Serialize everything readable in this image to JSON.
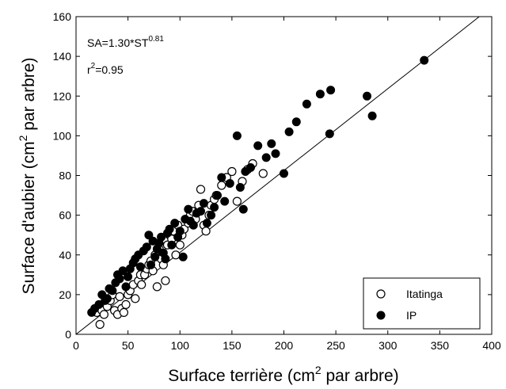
{
  "chart_data": {
    "type": "scatter",
    "xlabel": {
      "pre": "Surface terrière (cm",
      "sup": "2",
      "post": " par arbre)"
    },
    "ylabel": {
      "pre": "Surface d'aubier (cm",
      "sup": "2",
      "post": " par arbre)"
    },
    "xlim": [
      0,
      400
    ],
    "ylim": [
      0,
      160
    ],
    "x_ticks": [
      0,
      50,
      100,
      150,
      200,
      250,
      300,
      350,
      400
    ],
    "y_ticks": [
      0,
      20,
      40,
      60,
      80,
      100,
      120,
      140,
      160
    ],
    "grid": false,
    "legend_position": "bottom-right",
    "annotation": {
      "equation": {
        "pre": "SA=1.30*ST",
        "sup": "0.81"
      },
      "r2": {
        "pre": "r",
        "sup": "2",
        "post": "=0.95"
      }
    },
    "fit": {
      "type": "line",
      "points": [
        [
          0,
          0
        ],
        [
          388,
          160
        ]
      ]
    },
    "series": [
      {
        "name": "Itatinga",
        "marker": "open-circle",
        "color": "#000000",
        "points": [
          [
            20,
            11
          ],
          [
            23,
            5
          ],
          [
            25,
            12
          ],
          [
            27,
            10
          ],
          [
            30,
            14
          ],
          [
            33,
            17
          ],
          [
            35,
            20
          ],
          [
            37,
            12
          ],
          [
            40,
            10
          ],
          [
            42,
            19
          ],
          [
            44,
            13
          ],
          [
            46,
            11
          ],
          [
            48,
            15
          ],
          [
            50,
            20
          ],
          [
            52,
            22
          ],
          [
            55,
            25
          ],
          [
            57,
            18
          ],
          [
            60,
            27
          ],
          [
            62,
            30
          ],
          [
            63,
            25
          ],
          [
            66,
            30
          ],
          [
            68,
            33
          ],
          [
            70,
            35
          ],
          [
            72,
            37
          ],
          [
            74,
            32
          ],
          [
            76,
            40
          ],
          [
            78,
            24
          ],
          [
            80,
            43
          ],
          [
            82,
            38
          ],
          [
            84,
            35
          ],
          [
            86,
            27
          ],
          [
            88,
            45
          ],
          [
            90,
            50
          ],
          [
            92,
            48
          ],
          [
            94,
            52
          ],
          [
            96,
            40
          ],
          [
            98,
            55
          ],
          [
            100,
            45
          ],
          [
            102,
            50
          ],
          [
            104,
            53
          ],
          [
            106,
            58
          ],
          [
            108,
            56
          ],
          [
            110,
            60
          ],
          [
            112,
            62
          ],
          [
            115,
            58
          ],
          [
            118,
            65
          ],
          [
            120,
            73
          ],
          [
            123,
            55
          ],
          [
            125,
            52
          ],
          [
            128,
            60
          ],
          [
            130,
            65
          ],
          [
            133,
            68
          ],
          [
            135,
            70
          ],
          [
            140,
            75
          ],
          [
            145,
            79
          ],
          [
            150,
            82
          ],
          [
            155,
            67
          ],
          [
            160,
            77
          ],
          [
            165,
            83
          ],
          [
            170,
            86
          ],
          [
            180,
            81
          ]
        ]
      },
      {
        "name": "IP",
        "marker": "filled-circle",
        "color": "#000000",
        "points": [
          [
            15,
            11
          ],
          [
            18,
            13
          ],
          [
            22,
            15
          ],
          [
            25,
            20
          ],
          [
            28,
            17
          ],
          [
            30,
            18
          ],
          [
            32,
            23
          ],
          [
            35,
            22
          ],
          [
            38,
            26
          ],
          [
            40,
            30
          ],
          [
            42,
            28
          ],
          [
            45,
            32
          ],
          [
            48,
            24
          ],
          [
            50,
            29
          ],
          [
            52,
            33
          ],
          [
            55,
            36
          ],
          [
            57,
            38
          ],
          [
            60,
            40
          ],
          [
            62,
            34
          ],
          [
            65,
            42
          ],
          [
            68,
            44
          ],
          [
            70,
            50
          ],
          [
            72,
            35
          ],
          [
            74,
            47
          ],
          [
            76,
            39
          ],
          [
            78,
            43
          ],
          [
            80,
            46
          ],
          [
            82,
            49
          ],
          [
            84,
            41
          ],
          [
            86,
            38
          ],
          [
            88,
            51
          ],
          [
            90,
            53
          ],
          [
            92,
            45
          ],
          [
            95,
            56
          ],
          [
            98,
            49
          ],
          [
            100,
            52
          ],
          [
            103,
            39
          ],
          [
            105,
            58
          ],
          [
            108,
            63
          ],
          [
            110,
            57
          ],
          [
            113,
            55
          ],
          [
            116,
            61
          ],
          [
            120,
            62
          ],
          [
            123,
            66
          ],
          [
            126,
            56
          ],
          [
            130,
            60
          ],
          [
            133,
            64
          ],
          [
            136,
            70
          ],
          [
            140,
            79
          ],
          [
            143,
            67
          ],
          [
            148,
            76
          ],
          [
            155,
            100
          ],
          [
            158,
            74
          ],
          [
            161,
            63
          ],
          [
            163,
            82
          ],
          [
            168,
            84
          ],
          [
            175,
            95
          ],
          [
            183,
            89
          ],
          [
            188,
            96
          ],
          [
            192,
            91
          ],
          [
            200,
            81
          ],
          [
            205,
            102
          ],
          [
            212,
            107
          ],
          [
            222,
            116
          ],
          [
            235,
            121
          ],
          [
            245,
            123
          ],
          [
            244,
            101
          ],
          [
            280,
            120
          ],
          [
            285,
            110
          ],
          [
            335,
            138
          ]
        ]
      }
    ]
  }
}
